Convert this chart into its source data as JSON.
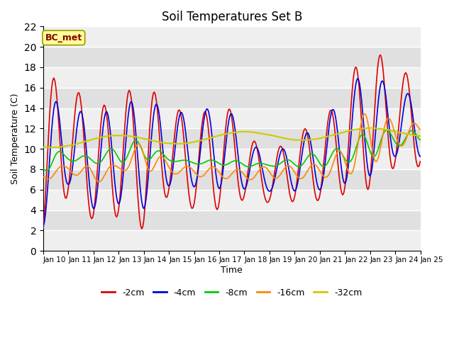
{
  "title": "Soil Temperatures Set B",
  "xlabel": "Time",
  "ylabel": "Soil Temperature (C)",
  "annotation": "BC_met",
  "ylim": [
    0,
    22
  ],
  "xlim": [
    0,
    360
  ],
  "yticks": [
    0,
    2,
    4,
    6,
    8,
    10,
    12,
    14,
    16,
    18,
    20,
    22
  ],
  "xtick_labels": [
    "Jan 10",
    "Jan 11",
    "Jan 12",
    "Jan 13",
    "Jan 14",
    "Jan 15",
    "Jan 16",
    "Jan 17",
    "Jan 18",
    "Jan 19",
    "Jan 20",
    "Jan 21",
    "Jan 22",
    "Jan 23",
    "Jan 24",
    "Jan 25"
  ],
  "xtick_positions": [
    0,
    24,
    48,
    72,
    96,
    120,
    144,
    168,
    192,
    216,
    240,
    264,
    288,
    312,
    336,
    360
  ],
  "colors": {
    "-2cm": "#dd0000",
    "-4cm": "#0000dd",
    "-8cm": "#00cc00",
    "-16cm": "#ff8800",
    "-32cm": "#cccc00"
  },
  "plot_bg_color": "#e0e0e0",
  "stripe_color": "#d0d0d0",
  "grid_color": "#ffffff",
  "annotation_bg": "#ffff99",
  "annotation_border": "#999900",
  "annotation_text_color": "#880000",
  "legend_linestyle": "-"
}
